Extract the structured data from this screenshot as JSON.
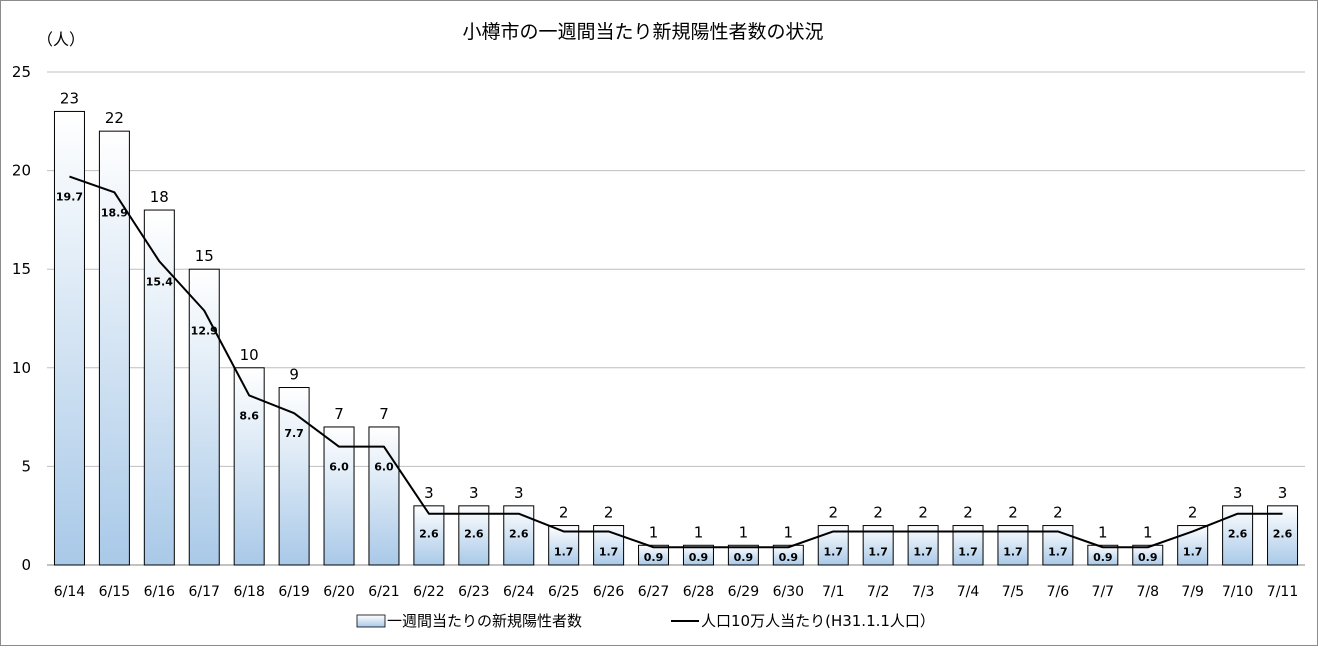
{
  "chart_data": {
    "type": "bar",
    "title": "小樽市の一週間当たり新規陽性者数の状況",
    "y_unit_label": "（人）",
    "ylim": [
      0,
      25
    ],
    "yticks": [
      0,
      5,
      10,
      15,
      20,
      25
    ],
    "grid": true,
    "legend_position": "bottom",
    "categories": [
      "6/14",
      "6/15",
      "6/16",
      "6/17",
      "6/18",
      "6/19",
      "6/20",
      "6/21",
      "6/22",
      "6/23",
      "6/24",
      "6/25",
      "6/26",
      "6/27",
      "6/28",
      "6/29",
      "6/30",
      "7/1",
      "7/2",
      "7/3",
      "7/4",
      "7/5",
      "7/6",
      "7/7",
      "7/8",
      "7/9",
      "7/10",
      "7/11"
    ],
    "series": [
      {
        "name": "一週間当たりの新規陽性者数",
        "kind": "bar",
        "values": [
          23,
          22,
          18,
          15,
          10,
          9,
          7,
          7,
          3,
          3,
          3,
          2,
          2,
          1,
          1,
          1,
          1,
          2,
          2,
          2,
          2,
          2,
          2,
          1,
          1,
          2,
          3,
          3
        ],
        "value_labels": [
          "23",
          "22",
          "18",
          "15",
          "10",
          "9",
          "7",
          "7",
          "3",
          "3",
          "3",
          "2",
          "2",
          "1",
          "1",
          "1",
          "1",
          "2",
          "2",
          "2",
          "2",
          "2",
          "2",
          "1",
          "1",
          "2",
          "3",
          "3"
        ]
      },
      {
        "name": "人口10万人当たり(H31.1.1人口）",
        "kind": "line",
        "color": "#000000",
        "values": [
          19.7,
          18.9,
          15.4,
          12.9,
          8.6,
          7.7,
          6.0,
          6.0,
          2.6,
          2.6,
          2.6,
          1.7,
          1.7,
          0.9,
          0.9,
          0.9,
          0.9,
          1.7,
          1.7,
          1.7,
          1.7,
          1.7,
          1.7,
          0.9,
          0.9,
          1.7,
          2.6,
          2.6
        ],
        "value_labels": [
          "19.7",
          "18.9",
          "15.4",
          "12.9",
          "8.6",
          "7.7",
          "6.0",
          "6.0",
          "2.6",
          "2.6",
          "2.6",
          "1.7",
          "1.7",
          "0.9",
          "0.9",
          "0.9",
          "0.9",
          "1.7",
          "1.7",
          "1.7",
          "1.7",
          "1.7",
          "1.7",
          "0.9",
          "0.9",
          "1.7",
          "2.6",
          "2.6"
        ]
      }
    ],
    "colors": {
      "bar_top": "#ffffff",
      "bar_bottom": "#a9c9e8",
      "bar_border": "#000000",
      "grid": "#bfbfbf",
      "axis": "#868686",
      "text": "#000000"
    }
  }
}
